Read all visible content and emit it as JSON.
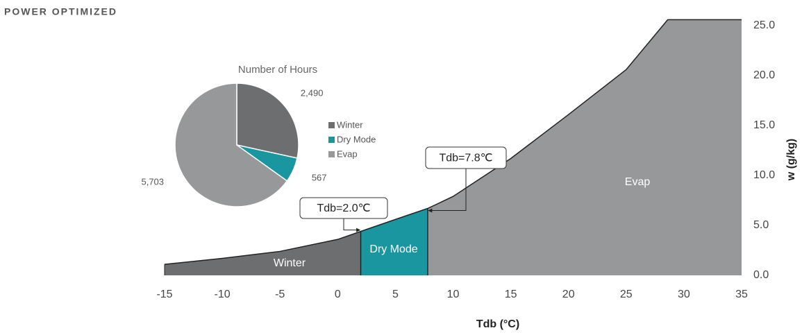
{
  "page_title": "POWER OPTIMIZED",
  "chart_data": [
    {
      "type": "area",
      "x_label": "Tdb (°C)",
      "y_label": "w (g/kg)",
      "x": [
        -15,
        -10,
        -5,
        0,
        2,
        5,
        7.8,
        10,
        15,
        20,
        25,
        28.6,
        35
      ],
      "values": [
        1.1,
        1.7,
        2.4,
        3.6,
        4.4,
        5.6,
        6.7,
        7.9,
        11.7,
        16.1,
        20.6,
        25.6,
        25.6
      ],
      "regions": [
        {
          "name": "Winter",
          "color": "#6d6e70",
          "from": -15,
          "to": 2.0
        },
        {
          "name": "Dry Mode",
          "color": "#1a96a0",
          "from": 2.0,
          "to": 7.8
        },
        {
          "name": "Evap",
          "color": "#97989a",
          "from": 7.8,
          "to": 35
        }
      ],
      "annotations": [
        {
          "text": "Tdb=2.0℃"
        },
        {
          "text": "Tdb=7.8℃"
        }
      ],
      "xlim": [
        -15,
        35
      ],
      "xticks": [
        -15,
        -10,
        -5,
        0,
        5,
        10,
        15,
        20,
        25,
        30,
        35
      ],
      "ylim": [
        0,
        25
      ],
      "yticks": [
        {
          "value": 0,
          "label": "0.0"
        },
        {
          "value": 5,
          "label": "5.0"
        },
        {
          "value": 10,
          "label": "10.0"
        },
        {
          "value": 15,
          "label": "15.0"
        },
        {
          "value": 20,
          "label": "20.0"
        },
        {
          "value": 25,
          "label": "25.0"
        }
      ]
    },
    {
      "type": "pie",
      "title": "Number of Hours",
      "categories": [
        "Winter",
        "Dry Mode",
        "Evap"
      ],
      "values": [
        2490,
        567,
        5703
      ],
      "value_labels": [
        "2,490",
        "567",
        "5,703"
      ],
      "colors": [
        "#6d6e70",
        "#1a96a0",
        "#97989a"
      ]
    }
  ]
}
